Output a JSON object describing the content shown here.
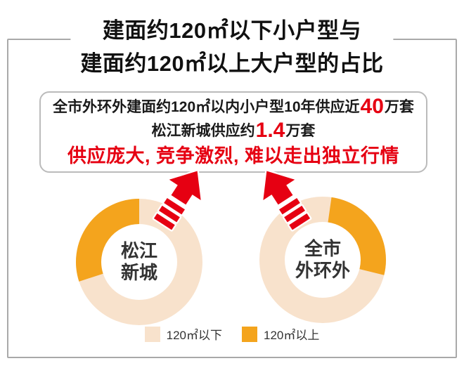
{
  "title": {
    "line1": "建面约120㎡以下小户型与",
    "line2": "建面约120㎡以上大户型的占比"
  },
  "callout": {
    "line1": [
      {
        "text": "全市外环外建面约120㎡以内小户型10年供应近",
        "style": "normal"
      },
      {
        "text": "40",
        "style": "highlight"
      },
      {
        "text": "万套",
        "style": "normal"
      }
    ],
    "line2": [
      {
        "text": "松江新城供应约",
        "style": "normal"
      },
      {
        "text": "1.4",
        "style": "highlight"
      },
      {
        "text": "万套",
        "style": "normal"
      }
    ],
    "line3": [
      {
        "text": "供应庞大, 竞争激烈, 难以走出独立行情",
        "style": "emphasis"
      }
    ]
  },
  "colors": {
    "red": "#e60012",
    "orange": "#f4a41d",
    "cream": "#f8e2cc",
    "frame_border": "#a9a9a9",
    "text": "#1a1a1a"
  },
  "chart_data": [
    {
      "type": "pie",
      "title": "松江新城",
      "label_lines": [
        "松江",
        "新城"
      ],
      "categories": [
        "120㎡以下",
        "120㎡以上"
      ],
      "values": [
        70,
        30
      ],
      "series": [
        {
          "name": "120㎡以下",
          "value": 70,
          "color": "#f8e2cc"
        },
        {
          "name": "120㎡以上",
          "value": 30,
          "color": "#f4a41d"
        }
      ],
      "donut_hole_ratio": 0.6,
      "orange_arc": {
        "start_deg": 252,
        "end_deg": 360
      },
      "legend_position": "bottom-center"
    },
    {
      "type": "pie",
      "title": "全市外环外",
      "label_lines": [
        "全市",
        "外环外"
      ],
      "categories": [
        "120㎡以下",
        "120㎡以上"
      ],
      "values": [
        73,
        27
      ],
      "series": [
        {
          "name": "120㎡以下",
          "value": 73,
          "color": "#f8e2cc"
        },
        {
          "name": "120㎡以上",
          "value": 27,
          "color": "#f4a41d"
        }
      ],
      "donut_hole_ratio": 0.6,
      "orange_arc": {
        "start_deg": 8,
        "end_deg": 104
      },
      "legend_position": "bottom-center"
    }
  ],
  "legend": [
    {
      "label": "120㎡以下",
      "color": "#f8e2cc"
    },
    {
      "label": "120㎡以上",
      "color": "#f4a41d"
    }
  ]
}
